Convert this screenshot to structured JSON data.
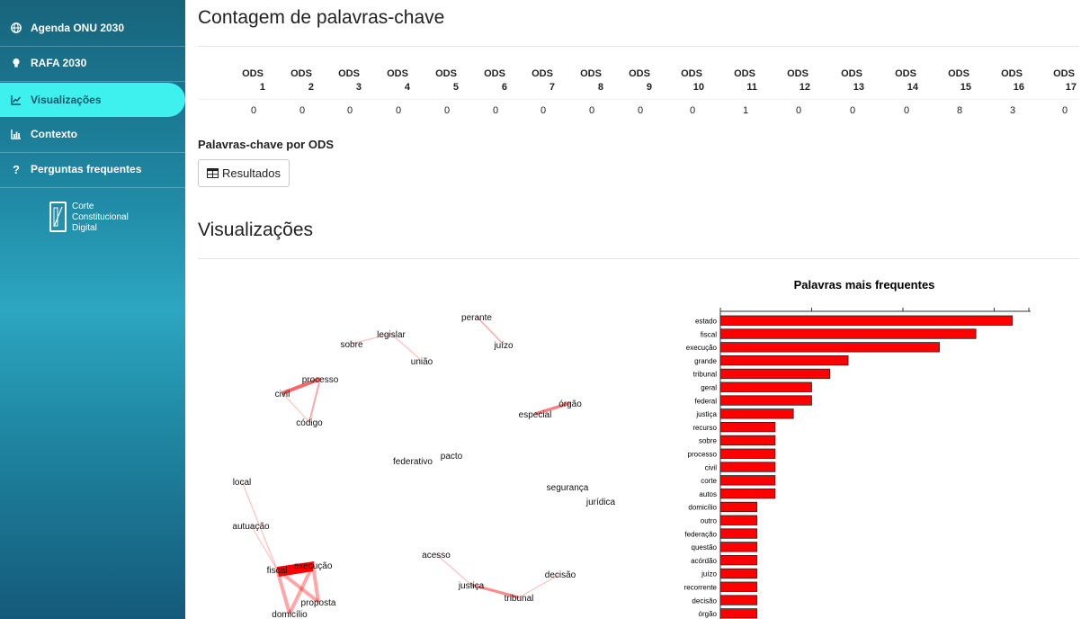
{
  "sidebar": {
    "items": [
      {
        "label": "Agenda ONU 2030",
        "icon": "globe-icon"
      },
      {
        "label": "RAFA 2030",
        "icon": "lightbulb-icon"
      },
      {
        "label": "Visualizações",
        "icon": "line-chart-icon",
        "active": true
      },
      {
        "label": "Contexto",
        "icon": "bar-chart-icon"
      },
      {
        "label": "Perguntas frequentes",
        "icon": "question-icon"
      }
    ],
    "logo": {
      "line1": "Corte",
      "line2": "Constitucional",
      "line3": "Digital"
    }
  },
  "keyword_count": {
    "title": "Contagem de palavras-chave",
    "header_prefix": "ODS",
    "columns": [
      "1",
      "2",
      "3",
      "4",
      "5",
      "6",
      "7",
      "8",
      "9",
      "10",
      "11",
      "12",
      "13",
      "14",
      "15",
      "16",
      "17"
    ],
    "values": [
      0,
      0,
      0,
      0,
      0,
      0,
      0,
      0,
      0,
      0,
      1,
      0,
      0,
      0,
      8,
      3,
      0
    ]
  },
  "keywords_by_ods": {
    "title": "Palavras-chave por ODS",
    "button_label": "Resultados"
  },
  "visualizations": {
    "title": "Visualizações",
    "network_words": [
      "perante",
      "juízo",
      "legislar",
      "sobre",
      "união",
      "processo",
      "civil",
      "código",
      "especial",
      "órgão",
      "federativo",
      "pacto",
      "segurança",
      "jurídica",
      "local",
      "autuação",
      "fiscal",
      "execução",
      "proposta",
      "domicílio",
      "acesso",
      "justiça",
      "tribunal",
      "decisão"
    ],
    "accent_color": "#ff0000"
  },
  "chart_data": {
    "type": "bar",
    "orientation": "horizontal",
    "title": "Palavras mais frequentes",
    "categories": [
      "estado",
      "fiscal",
      "execução",
      "grande",
      "tribunal",
      "geral",
      "federal",
      "justiça",
      "recurso",
      "sobre",
      "processo",
      "civil",
      "corte",
      "autos",
      "domicílio",
      "outro",
      "federação",
      "questão",
      "acórdão",
      "juízo",
      "recorrente",
      "decisão",
      "órgão"
    ],
    "values": [
      16,
      14,
      12,
      7,
      6,
      5,
      5,
      4,
      3,
      3,
      3,
      3,
      3,
      3,
      2,
      2,
      2,
      2,
      2,
      2,
      2,
      2,
      2
    ],
    "xlim": [
      0,
      17
    ],
    "color": "#ff0000"
  }
}
